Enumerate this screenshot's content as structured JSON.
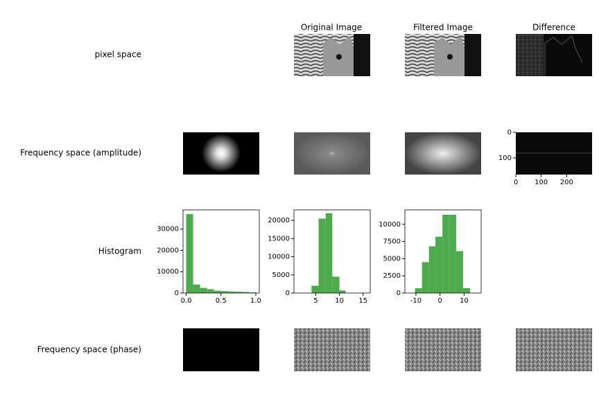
{
  "column_titles": [
    "Original Image",
    "Filtered Image",
    "Difference"
  ],
  "row_labels": [
    "pixel space",
    "Frequency space (amplitude)",
    "Histogram",
    "Frequency space (phase)"
  ],
  "difference_axes": {
    "xlim": [
      0,
      300
    ],
    "ylim": [
      165,
      0
    ],
    "xticks": [
      0,
      100,
      200
    ],
    "yticks": [
      0,
      100
    ]
  },
  "chart_data": [
    {
      "type": "histogram",
      "color": "#4daa4d",
      "bins": [
        0.0,
        0.1,
        0.2,
        0.3,
        0.4,
        0.5,
        0.6,
        0.7,
        0.8,
        0.9,
        1.0
      ],
      "values": [
        37000,
        4000,
        2400,
        1800,
        1100,
        900,
        700,
        600,
        500,
        300
      ],
      "xlim": [
        -0.045,
        1.05
      ],
      "ylim": [
        0,
        39000
      ],
      "xticks": [
        {
          "value": 0,
          "label": "0.0"
        },
        {
          "value": 0.5,
          "label": "0.5"
        },
        {
          "value": 1,
          "label": "1.0"
        }
      ],
      "yticks": [
        0,
        10000,
        20000,
        30000
      ]
    },
    {
      "type": "histogram",
      "color": "#4daa4d",
      "bins": [
        4.1,
        5.6,
        7.1,
        8.5,
        10.0,
        11.3
      ],
      "values": [
        2000,
        20500,
        22000,
        4500,
        700
      ],
      "xlim": [
        0.4,
        16.5
      ],
      "ylim": [
        0,
        22900
      ],
      "xticks": [
        5,
        10,
        15
      ],
      "yticks": [
        0,
        5000,
        10000,
        15000,
        20000
      ]
    },
    {
      "type": "histogram",
      "color": "#4daa4d",
      "bins": [
        -10.4,
        -7.5,
        -4.6,
        -1.9,
        1.0,
        3.8,
        6.7,
        9.6,
        12.5
      ],
      "values": [
        700,
        4500,
        6800,
        8200,
        11400,
        11400,
        6100,
        700
      ],
      "xlim": [
        -14.6,
        17.1
      ],
      "ylim": [
        0,
        12100
      ],
      "xticks": [
        -10,
        0,
        10
      ],
      "yticks": [
        0,
        2500,
        5000,
        7500,
        10000
      ]
    }
  ]
}
